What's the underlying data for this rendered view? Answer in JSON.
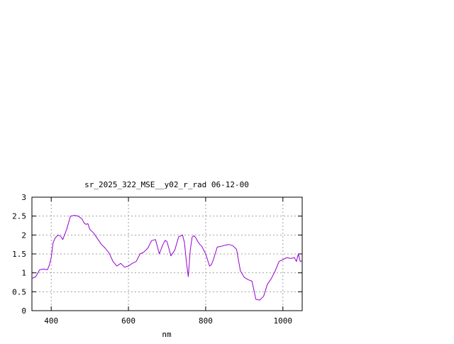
{
  "chart_data": {
    "type": "line",
    "title": "sr_2025_322_MSE__y02_r_rad 06-12-00",
    "xlabel": "nm",
    "ylabel": "",
    "xlim": [
      350,
      1050
    ],
    "ylim": [
      0,
      3
    ],
    "x_ticks": [
      400,
      600,
      800,
      1000
    ],
    "x_tick_labels": [
      "400",
      "600",
      "800",
      "1000"
    ],
    "y_ticks": [
      0,
      0.5,
      1,
      1.5,
      2,
      2.5,
      3
    ],
    "y_tick_labels": [
      "0",
      "0.5",
      "1",
      "1.5",
      "2",
      "2.5",
      "3"
    ],
    "grid": true,
    "legend": "none",
    "line_color": "#9400d3",
    "series": [
      {
        "x": [
          350,
          360,
          370,
          380,
          390,
          395,
          400,
          405,
          410,
          418,
          425,
          430,
          440,
          450,
          460,
          470,
          480,
          485,
          490,
          495,
          500,
          510,
          520,
          530,
          540,
          550,
          560,
          570,
          580,
          590,
          600,
          610,
          620,
          630,
          640,
          650,
          660,
          670,
          680,
          688,
          695,
          700,
          710,
          720,
          730,
          740,
          745,
          750,
          755,
          760,
          765,
          770,
          775,
          780,
          785,
          790,
          800,
          810,
          815,
          820,
          830,
          840,
          850,
          860,
          870,
          880,
          890,
          900,
          910,
          920,
          930,
          940,
          950,
          960,
          970,
          980,
          990,
          1000,
          1010,
          1020,
          1030,
          1035,
          1040,
          1045,
          1050
        ],
        "y": [
          0.85,
          0.9,
          1.08,
          1.1,
          1.08,
          1.2,
          1.4,
          1.8,
          1.92,
          2.0,
          1.96,
          1.88,
          2.15,
          2.5,
          2.52,
          2.5,
          2.42,
          2.32,
          2.28,
          2.3,
          2.15,
          2.05,
          1.9,
          1.75,
          1.65,
          1.52,
          1.3,
          1.18,
          1.25,
          1.15,
          1.18,
          1.25,
          1.3,
          1.5,
          1.55,
          1.65,
          1.85,
          1.88,
          1.5,
          1.72,
          1.86,
          1.82,
          1.45,
          1.6,
          1.95,
          2.0,
          1.8,
          1.3,
          0.9,
          1.6,
          1.95,
          1.98,
          1.92,
          1.82,
          1.75,
          1.7,
          1.5,
          1.18,
          1.22,
          1.35,
          1.68,
          1.7,
          1.73,
          1.75,
          1.72,
          1.62,
          1.05,
          0.88,
          0.82,
          0.78,
          0.3,
          0.28,
          0.38,
          0.7,
          0.85,
          1.05,
          1.3,
          1.35,
          1.4,
          1.38,
          1.4,
          1.3,
          1.5,
          1.3,
          1.32
        ]
      }
    ]
  }
}
